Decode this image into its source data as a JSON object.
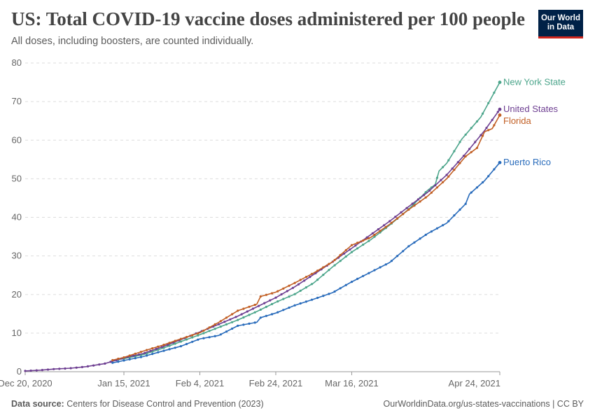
{
  "title": "US: Total COVID-19 vaccine doses administered per 100 people",
  "subtitle": "All doses, including boosters, are counted individually.",
  "logo": {
    "line1": "Our World",
    "line2": "in Data"
  },
  "footer": {
    "source_label": "Data source:",
    "source_text": "Centers for Disease Control and Prevention (2023)",
    "right_text": "OurWorldinData.org/us-states-vaccinations | CC BY"
  },
  "chart_data": {
    "type": "line",
    "title": "US: Total COVID-19 vaccine doses administered per 100 people",
    "subtitle": "All doses, including boosters, are counted individually.",
    "xlabel": "",
    "ylabel": "",
    "xlim": [
      "2020-12-20",
      "2021-04-24"
    ],
    "ylim": [
      0,
      80
    ],
    "yticks": [
      0,
      10,
      20,
      30,
      40,
      50,
      60,
      70,
      80
    ],
    "xticks": [
      "2020-12-20",
      "2021-01-15",
      "2021-02-04",
      "2021-02-24",
      "2021-03-16",
      "2021-04-24"
    ],
    "xtick_labels": [
      "Dec 20, 2020",
      "Jan 15, 2021",
      "Feb 4, 2021",
      "Feb 24, 2021",
      "Mar 16, 2021",
      "Apr 24, 2021"
    ],
    "grid": true,
    "legend": "direct labels at line ends (right)",
    "series": [
      {
        "name": "New York State",
        "color": "#4ca58b",
        "points": [
          [
            "2021-01-12",
            2.9
          ],
          [
            "2021-01-15",
            3.4
          ],
          [
            "2021-01-20",
            4.4
          ],
          [
            "2021-01-25",
            6.0
          ],
          [
            "2021-01-30",
            7.8
          ],
          [
            "2021-02-04",
            9.6
          ],
          [
            "2021-02-09",
            11.5
          ],
          [
            "2021-02-14",
            13.4
          ],
          [
            "2021-02-19",
            15.6
          ],
          [
            "2021-02-24",
            18.0
          ],
          [
            "2021-03-01",
            20.1
          ],
          [
            "2021-03-06",
            23.0
          ],
          [
            "2021-03-11",
            27.2
          ],
          [
            "2021-03-16",
            31.0
          ],
          [
            "2021-03-21",
            34.2
          ],
          [
            "2021-03-26",
            38.0
          ],
          [
            "2021-03-31",
            42.1
          ],
          [
            "2021-04-05",
            47.0
          ],
          [
            "2021-04-07",
            48.5
          ],
          [
            "2021-04-08",
            52.0
          ],
          [
            "2021-04-10",
            54.0
          ],
          [
            "2021-04-14",
            60.3
          ],
          [
            "2021-04-19",
            66.0
          ],
          [
            "2021-04-24",
            75.0
          ]
        ]
      },
      {
        "name": "United States",
        "color": "#6d3e91",
        "points": [
          [
            "2020-12-20",
            0.2
          ],
          [
            "2020-12-24",
            0.4
          ],
          [
            "2020-12-28",
            0.7
          ],
          [
            "2021-01-01",
            0.9
          ],
          [
            "2021-01-05",
            1.3
          ],
          [
            "2021-01-10",
            2.1
          ],
          [
            "2021-01-15",
            3.6
          ],
          [
            "2021-01-20",
            4.7
          ],
          [
            "2021-01-25",
            6.4
          ],
          [
            "2021-01-30",
            8.3
          ],
          [
            "2021-02-04",
            10.3
          ],
          [
            "2021-02-09",
            12.3
          ],
          [
            "2021-02-14",
            14.4
          ],
          [
            "2021-02-19",
            16.8
          ],
          [
            "2021-02-24",
            19.2
          ],
          [
            "2021-03-01",
            22.0
          ],
          [
            "2021-03-06",
            25.2
          ],
          [
            "2021-03-11",
            28.5
          ],
          [
            "2021-03-16",
            32.0
          ],
          [
            "2021-03-21",
            35.5
          ],
          [
            "2021-03-26",
            39.0
          ],
          [
            "2021-03-31",
            42.8
          ],
          [
            "2021-04-05",
            46.5
          ],
          [
            "2021-04-10",
            51.0
          ],
          [
            "2021-04-15",
            56.5
          ],
          [
            "2021-04-20",
            62.5
          ],
          [
            "2021-04-24",
            68.0
          ]
        ]
      },
      {
        "name": "Florida",
        "color": "#c15e23",
        "points": [
          [
            "2021-01-12",
            3.0
          ],
          [
            "2021-01-15",
            3.7
          ],
          [
            "2021-01-20",
            5.3
          ],
          [
            "2021-01-25",
            6.8
          ],
          [
            "2021-01-30",
            8.5
          ],
          [
            "2021-02-04",
            10.1
          ],
          [
            "2021-02-09",
            12.8
          ],
          [
            "2021-02-14",
            15.8
          ],
          [
            "2021-02-19",
            17.5
          ],
          [
            "2021-02-20",
            19.5
          ],
          [
            "2021-02-24",
            20.6
          ],
          [
            "2021-03-01",
            23.0
          ],
          [
            "2021-03-06",
            25.6
          ],
          [
            "2021-03-11",
            28.5
          ],
          [
            "2021-03-16",
            32.8
          ],
          [
            "2021-03-21",
            34.8
          ],
          [
            "2021-03-26",
            38.2
          ],
          [
            "2021-03-31",
            42.0
          ],
          [
            "2021-04-05",
            45.5
          ],
          [
            "2021-04-10",
            50.0
          ],
          [
            "2021-04-15",
            55.8
          ],
          [
            "2021-04-18",
            58.0
          ],
          [
            "2021-04-20",
            62.2
          ],
          [
            "2021-04-22",
            63.0
          ],
          [
            "2021-04-24",
            66.5
          ]
        ]
      },
      {
        "name": "Puerto Rico",
        "color": "#286bbb",
        "points": [
          [
            "2021-01-12",
            2.3
          ],
          [
            "2021-01-15",
            2.9
          ],
          [
            "2021-01-20",
            3.9
          ],
          [
            "2021-01-25",
            5.3
          ],
          [
            "2021-01-30",
            6.6
          ],
          [
            "2021-02-04",
            8.5
          ],
          [
            "2021-02-09",
            9.4
          ],
          [
            "2021-02-14",
            11.9
          ],
          [
            "2021-02-19",
            12.8
          ],
          [
            "2021-02-20",
            14.0
          ],
          [
            "2021-02-24",
            15.2
          ],
          [
            "2021-03-01",
            17.2
          ],
          [
            "2021-03-06",
            18.8
          ],
          [
            "2021-03-11",
            20.5
          ],
          [
            "2021-03-16",
            23.3
          ],
          [
            "2021-03-21",
            25.8
          ],
          [
            "2021-03-26",
            28.3
          ],
          [
            "2021-03-31",
            32.5
          ],
          [
            "2021-04-05",
            35.8
          ],
          [
            "2021-04-10",
            38.5
          ],
          [
            "2021-04-15",
            43.5
          ],
          [
            "2021-04-16",
            46.0
          ],
          [
            "2021-04-20",
            49.5
          ],
          [
            "2021-04-24",
            54.2
          ]
        ]
      }
    ]
  }
}
